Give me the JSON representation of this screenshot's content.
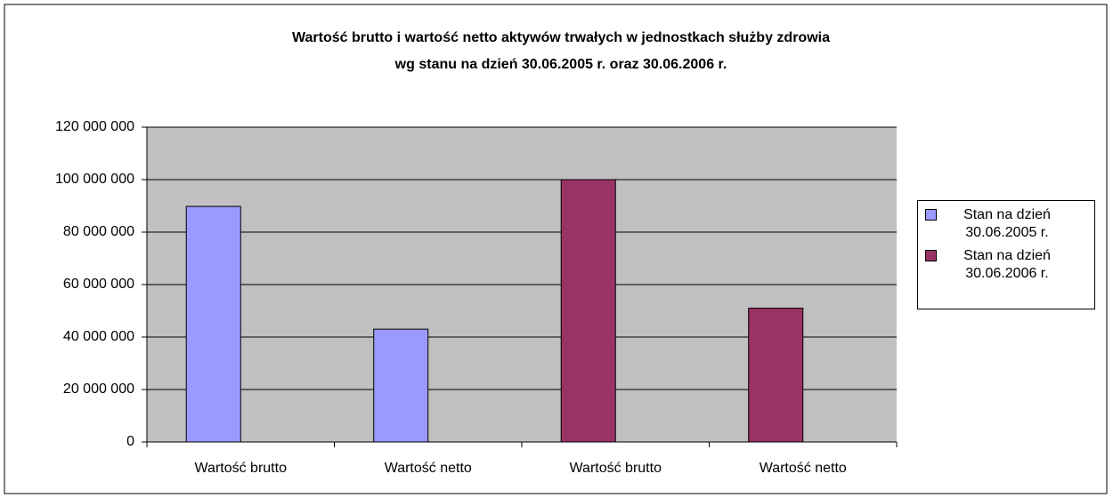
{
  "chart_data": {
    "type": "bar",
    "title": [
      "Wartość brutto i wartość netto aktywów trwałych w jednostkach służby zdrowia",
      "wg stanu na dzień 30.06.2005 r. oraz 30.06.2006 r."
    ],
    "categories": [
      "Wartość brutto",
      "Wartość netto",
      "Wartość brutto",
      "Wartość netto"
    ],
    "series": [
      {
        "name": "Stan na dzień 30.06.2005 r.",
        "color": "#9999ff",
        "values": [
          89800000,
          43000000,
          null,
          null
        ]
      },
      {
        "name": "Stan na dzień 30.06.2006 r.",
        "color": "#993366",
        "values": [
          null,
          null,
          100000000,
          51000000
        ]
      }
    ],
    "ylim": [
      0,
      120000000
    ],
    "yticks": [
      0,
      {
        "value": 20000000,
        "label": "20 000 000"
      },
      {
        "value": 40000000,
        "label": "40 000 000"
      },
      {
        "value": 60000000,
        "label": "60 000 000"
      },
      {
        "value": 80000000,
        "label": "80 000 000"
      },
      {
        "value": 100000000,
        "label": "100 000 000"
      },
      {
        "value": 120000000,
        "label": "120 000 000"
      }
    ],
    "grid": true,
    "legend": "right"
  }
}
